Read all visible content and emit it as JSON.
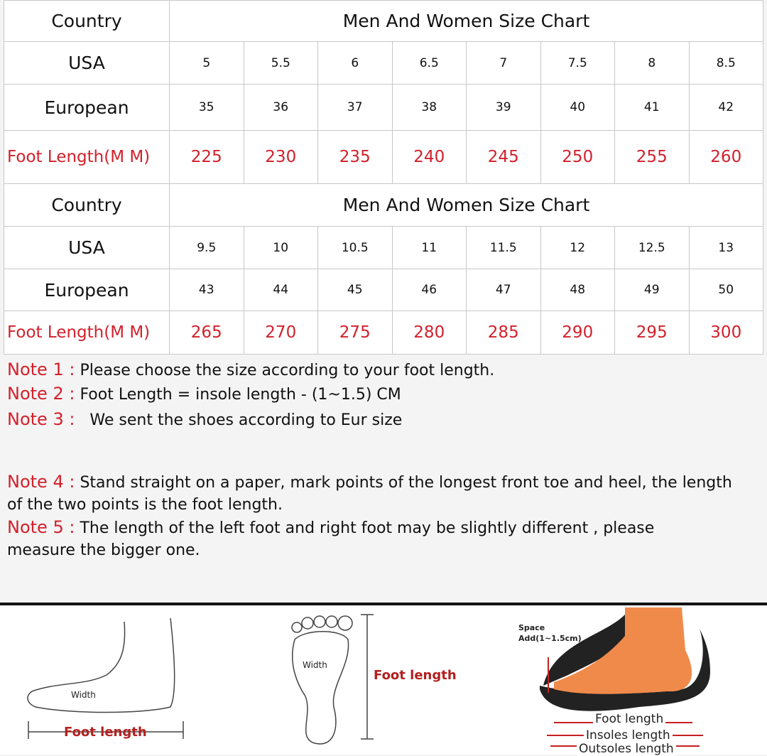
{
  "tables": [
    {
      "header_label": "Country",
      "title": "Men And Women Size Chart",
      "rows": [
        {
          "label": "USA",
          "values": [
            "5",
            "5.5",
            "6",
            "6.5",
            "7",
            "7.5",
            "8",
            "8.5"
          ]
        },
        {
          "label": "European",
          "values": [
            "35",
            "36",
            "37",
            "38",
            "39",
            "40",
            "41",
            "42"
          ]
        },
        {
          "label": "Foot Length(M M)",
          "values": [
            "225",
            "230",
            "235",
            "240",
            "245",
            "250",
            "255",
            "260"
          ]
        }
      ]
    },
    {
      "header_label": "Country",
      "title": "Men And Women Size Chart",
      "rows": [
        {
          "label": "USA",
          "values": [
            "9.5",
            "10",
            "10.5",
            "11",
            "11.5",
            "12",
            "12.5",
            "13"
          ]
        },
        {
          "label": "European",
          "values": [
            "43",
            "44",
            "45",
            "46",
            "47",
            "48",
            "49",
            "50"
          ]
        },
        {
          "label": "Foot Length(M M)",
          "values": [
            "265",
            "270",
            "275",
            "280",
            "285",
            "290",
            "295",
            "300"
          ]
        }
      ]
    }
  ],
  "notes": [
    {
      "label": "Note 1 :",
      "text": "Please choose the size according to your foot length."
    },
    {
      "label": "Note 2 :",
      "text": "Foot Length = insole length  -  (1~1.5) CM"
    },
    {
      "label": "Note 3 :",
      "text": "  We sent the shoes according to Eur size"
    },
    {
      "label": "Note 4 :",
      "text": "  Stand straight on a paper, mark points of the longest front toe and heel, the length of the two points is the foot length."
    },
    {
      "label": "Note 5 :",
      "text": "The length of the left foot and right foot may be slightly different , please measure the bigger one."
    }
  ],
  "illustrations": {
    "side_foot": {
      "width": "Width",
      "length": "Foot length"
    },
    "footprint": {
      "width": "Width",
      "length": "Foot length"
    },
    "shoe": {
      "space": "Space",
      "space_add": "Add(1~1.5cm)",
      "foot_length": "Foot length",
      "insoles_length": "Insoles length",
      "outsoles_length": "Outsoles length"
    }
  },
  "colors": {
    "accent_red": "#d3202b"
  }
}
